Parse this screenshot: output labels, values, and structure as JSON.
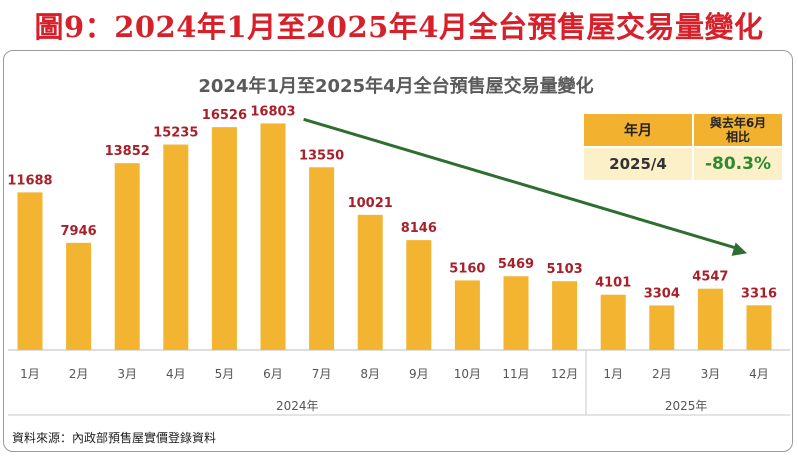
{
  "heading": "圖9：2024年1月至2025年4月全台預售屋交易量變化",
  "source_note": "資料來源：內政部預售屋實價登錄資料",
  "colors": {
    "bar": "#f2b431",
    "value_label": "#a8202a",
    "trend_arrow": "#2e6e2e",
    "heading": "#d8202a"
  },
  "comparison_table": {
    "col1_header": "年月",
    "col2_header_line1": "與去年6月",
    "col2_header_line2": "相比",
    "period": "2025/4",
    "change": "-80.3%"
  },
  "chart_data": {
    "type": "bar",
    "title": "2024年1月至2025年4月全台預售屋交易量變化",
    "categories": [
      "1月",
      "2月",
      "3月",
      "4月",
      "5月",
      "6月",
      "7月",
      "8月",
      "9月",
      "10月",
      "11月",
      "12月",
      "1月",
      "2月",
      "3月",
      "4月"
    ],
    "values": [
      11688,
      7946,
      13852,
      15235,
      16526,
      16803,
      13550,
      10021,
      8146,
      5160,
      5469,
      5103,
      4101,
      3304,
      4547,
      3316
    ],
    "year_groups": [
      {
        "label": "2024年",
        "start": 0,
        "end": 11
      },
      {
        "label": "2025年",
        "start": 12,
        "end": 15
      }
    ],
    "ylim": [
      0,
      17500
    ],
    "trend_arrow": {
      "from_index": 6,
      "to_index": 15
    },
    "xlabel": "",
    "ylabel": "",
    "grid": false,
    "legend": null
  }
}
